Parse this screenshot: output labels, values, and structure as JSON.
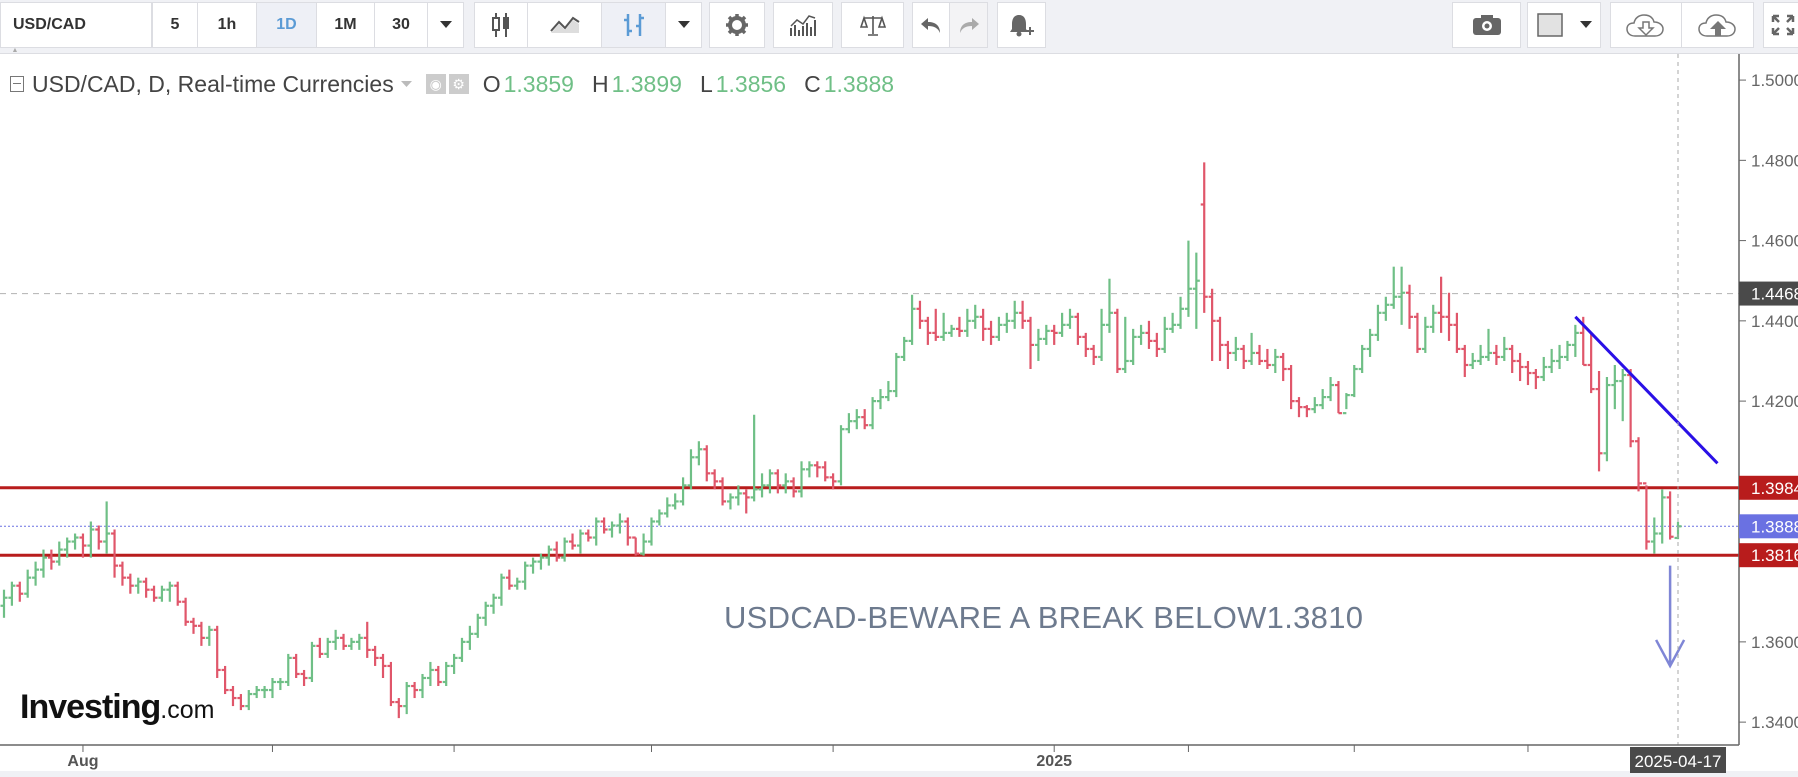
{
  "toolbar": {
    "symbol": "USD/CAD",
    "intervals": [
      "5",
      "1h",
      "1D",
      "1M",
      "30"
    ],
    "active_interval": "1D",
    "icons": [
      "candlestick-icon",
      "line-chart-icon",
      "bar-chart-icon",
      "settings-gear-icon",
      "indicators-icon",
      "compare-scale-icon",
      "undo-icon",
      "redo-icon",
      "add-alert-icon",
      "camera-icon",
      "color-swatch-icon",
      "cloud-download-icon",
      "cloud-upload-icon",
      "fullscreen-icon"
    ]
  },
  "legend": {
    "title": "USD/CAD, D, Real-time Currencies",
    "o_label": "O",
    "o": "1.3859",
    "h_label": "H",
    "h": "1.3899",
    "l_label": "L",
    "l": "1.3856",
    "c_label": "C",
    "c": "1.3888"
  },
  "annotation": "USDCAD-BEWARE A BREAK BELOW1.3810",
  "logo": {
    "brand": "Investing",
    "suffix": ".com"
  },
  "colors": {
    "up": "#6fbf86",
    "down": "#e0566a",
    "support": "#b81c1c",
    "trendline": "#2a10e6",
    "arrow": "#7f86d6",
    "last_price": "#6a71e2",
    "max_badge": "#4a4a4a"
  },
  "chart_data": {
    "type": "ohlc",
    "symbol": "USD/CAD",
    "ylim": [
      1.3343,
      1.5065
    ],
    "y_ticks": [
      "1.5000",
      "1.4800",
      "1.4600",
      "1.4400",
      "1.4200",
      "1.3600",
      "1.3400"
    ],
    "x_labels": [
      {
        "text": "Aug",
        "bar": 10
      },
      {
        "text": "2025",
        "bar": 133
      }
    ],
    "x_tick_bars": [
      10,
      34,
      57,
      82,
      105,
      133,
      150,
      171,
      193
    ],
    "last_date": "2025-04-17",
    "grid": false,
    "levels": [
      {
        "value": 1.4468,
        "label": "1.4468",
        "style": "dashed-gray"
      },
      {
        "value": 1.3984,
        "label": "1.3984",
        "style": "solid-red"
      },
      {
        "value": 1.3888,
        "label": "1.3888",
        "style": "dotted-blue"
      },
      {
        "value": 1.3816,
        "label": "1.3816",
        "style": "solid-red"
      }
    ],
    "trendline": {
      "from": [
        199,
        1.441
      ],
      "to": [
        217,
        1.4045
      ]
    },
    "arrow": {
      "bar": 211,
      "from": 1.379,
      "to": 1.354
    },
    "bars": [
      [
        1.369,
        1.373,
        1.366,
        1.371
      ],
      [
        1.371,
        1.375,
        1.369,
        1.374
      ],
      [
        1.374,
        1.375,
        1.37,
        1.372
      ],
      [
        1.372,
        1.378,
        1.371,
        1.376
      ],
      [
        1.376,
        1.38,
        1.374,
        1.378
      ],
      [
        1.378,
        1.383,
        1.376,
        1.381
      ],
      [
        1.381,
        1.383,
        1.378,
        1.38
      ],
      [
        1.38,
        1.385,
        1.379,
        1.383
      ],
      [
        1.383,
        1.386,
        1.381,
        1.385
      ],
      [
        1.385,
        1.387,
        1.383,
        1.386
      ],
      [
        1.386,
        1.387,
        1.381,
        1.384
      ],
      [
        1.384,
        1.39,
        1.381,
        1.388
      ],
      [
        1.388,
        1.389,
        1.383,
        1.385
      ],
      [
        1.385,
        1.395,
        1.382,
        1.387
      ],
      [
        1.387,
        1.388,
        1.376,
        1.379
      ],
      [
        1.379,
        1.38,
        1.374,
        1.376
      ],
      [
        1.376,
        1.377,
        1.372,
        1.374
      ],
      [
        1.374,
        1.376,
        1.372,
        1.375
      ],
      [
        1.375,
        1.376,
        1.371,
        1.373
      ],
      [
        1.373,
        1.374,
        1.37,
        1.371
      ],
      [
        1.371,
        1.374,
        1.37,
        1.373
      ],
      [
        1.373,
        1.375,
        1.37,
        1.374
      ],
      [
        1.374,
        1.375,
        1.369,
        1.37
      ],
      [
        1.37,
        1.371,
        1.364,
        1.365
      ],
      [
        1.365,
        1.366,
        1.362,
        1.364
      ],
      [
        1.364,
        1.365,
        1.359,
        1.361
      ],
      [
        1.361,
        1.364,
        1.359,
        1.363
      ],
      [
        1.363,
        1.364,
        1.351,
        1.353
      ],
      [
        1.353,
        1.354,
        1.347,
        1.348
      ],
      [
        1.348,
        1.349,
        1.344,
        1.346
      ],
      [
        1.346,
        1.347,
        1.343,
        1.344
      ],
      [
        1.344,
        1.348,
        1.343,
        1.347
      ],
      [
        1.347,
        1.349,
        1.346,
        1.348
      ],
      [
        1.348,
        1.349,
        1.346,
        1.348
      ],
      [
        1.348,
        1.351,
        1.346,
        1.35
      ],
      [
        1.35,
        1.351,
        1.348,
        1.35
      ],
      [
        1.35,
        1.357,
        1.349,
        1.356
      ],
      [
        1.356,
        1.357,
        1.351,
        1.352
      ],
      [
        1.352,
        1.353,
        1.349,
        1.351
      ],
      [
        1.351,
        1.36,
        1.35,
        1.359
      ],
      [
        1.359,
        1.361,
        1.356,
        1.357
      ],
      [
        1.357,
        1.361,
        1.356,
        1.36
      ],
      [
        1.36,
        1.363,
        1.358,
        1.361
      ],
      [
        1.361,
        1.362,
        1.358,
        1.359
      ],
      [
        1.359,
        1.361,
        1.358,
        1.36
      ],
      [
        1.36,
        1.362,
        1.358,
        1.361
      ],
      [
        1.361,
        1.365,
        1.356,
        1.358
      ],
      [
        1.358,
        1.359,
        1.354,
        1.356
      ],
      [
        1.356,
        1.357,
        1.351,
        1.354
      ],
      [
        1.354,
        1.355,
        1.344,
        1.345
      ],
      [
        1.345,
        1.346,
        1.341,
        1.344
      ],
      [
        1.344,
        1.35,
        1.342,
        1.349
      ],
      [
        1.349,
        1.35,
        1.346,
        1.348
      ],
      [
        1.348,
        1.352,
        1.346,
        1.351
      ],
      [
        1.351,
        1.355,
        1.349,
        1.353
      ],
      [
        1.353,
        1.354,
        1.349,
        1.35
      ],
      [
        1.35,
        1.355,
        1.349,
        1.354
      ],
      [
        1.354,
        1.357,
        1.352,
        1.356
      ],
      [
        1.356,
        1.361,
        1.355,
        1.36
      ],
      [
        1.36,
        1.364,
        1.358,
        1.362
      ],
      [
        1.362,
        1.367,
        1.361,
        1.366
      ],
      [
        1.366,
        1.37,
        1.364,
        1.369
      ],
      [
        1.369,
        1.372,
        1.367,
        1.371
      ],
      [
        1.371,
        1.377,
        1.369,
        1.376
      ],
      [
        1.376,
        1.378,
        1.373,
        1.374
      ],
      [
        1.374,
        1.376,
        1.373,
        1.375
      ],
      [
        1.375,
        1.38,
        1.373,
        1.379
      ],
      [
        1.379,
        1.381,
        1.377,
        1.38
      ],
      [
        1.38,
        1.382,
        1.378,
        1.381
      ],
      [
        1.381,
        1.384,
        1.379,
        1.383
      ],
      [
        1.383,
        1.385,
        1.38,
        1.381
      ],
      [
        1.381,
        1.386,
        1.38,
        1.385
      ],
      [
        1.385,
        1.387,
        1.383,
        1.384
      ],
      [
        1.384,
        1.388,
        1.382,
        1.387
      ],
      [
        1.387,
        1.388,
        1.385,
        1.386
      ],
      [
        1.386,
        1.391,
        1.384,
        1.39
      ],
      [
        1.39,
        1.391,
        1.387,
        1.388
      ],
      [
        1.388,
        1.39,
        1.386,
        1.389
      ],
      [
        1.389,
        1.392,
        1.387,
        1.39
      ],
      [
        1.39,
        1.391,
        1.384,
        1.386
      ],
      [
        1.386,
        1.386,
        1.3815,
        1.382
      ],
      [
        1.382,
        1.387,
        1.3815,
        1.385
      ],
      [
        1.385,
        1.391,
        1.384,
        1.39
      ],
      [
        1.39,
        1.393,
        1.389,
        1.392
      ],
      [
        1.392,
        1.396,
        1.391,
        1.394
      ],
      [
        1.394,
        1.397,
        1.393,
        1.395
      ],
      [
        1.395,
        1.401,
        1.394,
        1.399
      ],
      [
        1.399,
        1.408,
        1.398,
        1.406
      ],
      [
        1.406,
        1.41,
        1.404,
        1.408
      ],
      [
        1.408,
        1.409,
        1.4,
        1.402
      ],
      [
        1.402,
        1.403,
        1.398,
        1.4
      ],
      [
        1.4,
        1.401,
        1.394,
        1.395
      ],
      [
        1.395,
        1.397,
        1.393,
        1.396
      ],
      [
        1.396,
        1.399,
        1.394,
        1.397
      ],
      [
        1.397,
        1.398,
        1.392,
        1.396
      ],
      [
        1.396,
        1.4166,
        1.395,
        1.398
      ],
      [
        1.398,
        1.402,
        1.396,
        1.399
      ],
      [
        1.399,
        1.403,
        1.397,
        1.402
      ],
      [
        1.402,
        1.403,
        1.397,
        1.399
      ],
      [
        1.399,
        1.402,
        1.397,
        1.4
      ],
      [
        1.4,
        1.401,
        1.396,
        1.3975
      ],
      [
        1.3975,
        1.405,
        1.396,
        1.403
      ],
      [
        1.403,
        1.405,
        1.401,
        1.404
      ],
      [
        1.404,
        1.405,
        1.401,
        1.4035
      ],
      [
        1.4035,
        1.405,
        1.4,
        1.401
      ],
      [
        1.401,
        1.402,
        1.398,
        1.4
      ],
      [
        1.4,
        1.414,
        1.399,
        1.413
      ],
      [
        1.413,
        1.417,
        1.412,
        1.415
      ],
      [
        1.415,
        1.418,
        1.413,
        1.416
      ],
      [
        1.416,
        1.418,
        1.413,
        1.414
      ],
      [
        1.414,
        1.421,
        1.413,
        1.42
      ],
      [
        1.42,
        1.423,
        1.418,
        1.421
      ],
      [
        1.421,
        1.425,
        1.42,
        1.4225
      ],
      [
        1.4225,
        1.432,
        1.421,
        1.431
      ],
      [
        1.431,
        1.436,
        1.43,
        1.435
      ],
      [
        1.435,
        1.4465,
        1.434,
        1.443
      ],
      [
        1.443,
        1.445,
        1.438,
        1.44
      ],
      [
        1.44,
        1.441,
        1.434,
        1.437
      ],
      [
        1.437,
        1.443,
        1.435,
        1.436
      ],
      [
        1.436,
        1.442,
        1.435,
        1.437
      ],
      [
        1.437,
        1.439,
        1.436,
        1.438
      ],
      [
        1.438,
        1.441,
        1.436,
        1.4375
      ],
      [
        1.4375,
        1.443,
        1.436,
        1.44
      ],
      [
        1.44,
        1.444,
        1.438,
        1.441
      ],
      [
        1.441,
        1.443,
        1.435,
        1.438
      ],
      [
        1.438,
        1.44,
        1.434,
        1.436
      ],
      [
        1.436,
        1.441,
        1.435,
        1.439
      ],
      [
        1.439,
        1.442,
        1.437,
        1.44
      ],
      [
        1.44,
        1.445,
        1.438,
        1.442
      ],
      [
        1.442,
        1.445,
        1.438,
        1.44
      ],
      [
        1.44,
        1.441,
        1.428,
        1.434
      ],
      [
        1.434,
        1.438,
        1.43,
        1.4355
      ],
      [
        1.4355,
        1.439,
        1.434,
        1.4375
      ],
      [
        1.4375,
        1.439,
        1.434,
        1.437
      ],
      [
        1.437,
        1.442,
        1.436,
        1.439
      ],
      [
        1.439,
        1.443,
        1.438,
        1.441
      ],
      [
        1.441,
        1.442,
        1.434,
        1.436
      ],
      [
        1.436,
        1.437,
        1.431,
        1.433
      ],
      [
        1.433,
        1.434,
        1.429,
        1.431
      ],
      [
        1.431,
        1.443,
        1.43,
        1.439
      ],
      [
        1.439,
        1.4505,
        1.437,
        1.442
      ],
      [
        1.442,
        1.443,
        1.427,
        1.428
      ],
      [
        1.428,
        1.441,
        1.427,
        1.43
      ],
      [
        1.43,
        1.438,
        1.429,
        1.436
      ],
      [
        1.436,
        1.439,
        1.434,
        1.437
      ],
      [
        1.437,
        1.44,
        1.433,
        1.435
      ],
      [
        1.435,
        1.437,
        1.431,
        1.433
      ],
      [
        1.433,
        1.441,
        1.432,
        1.438
      ],
      [
        1.438,
        1.442,
        1.437,
        1.439
      ],
      [
        1.439,
        1.446,
        1.438,
        1.443
      ],
      [
        1.443,
        1.46,
        1.441,
        1.448
      ],
      [
        1.448,
        1.457,
        1.438,
        1.45
      ],
      [
        1.469,
        1.4795,
        1.442,
        1.446
      ],
      [
        1.446,
        1.448,
        1.43,
        1.44
      ],
      [
        1.44,
        1.441,
        1.43,
        1.434
      ],
      [
        1.434,
        1.435,
        1.428,
        1.432
      ],
      [
        1.432,
        1.436,
        1.43,
        1.433
      ],
      [
        1.433,
        1.434,
        1.428,
        1.43
      ],
      [
        1.43,
        1.437,
        1.429,
        1.432
      ],
      [
        1.432,
        1.434,
        1.429,
        1.43
      ],
      [
        1.43,
        1.433,
        1.428,
        1.429
      ],
      [
        1.429,
        1.433,
        1.427,
        1.431
      ],
      [
        1.431,
        1.432,
        1.425,
        1.428
      ],
      [
        1.428,
        1.429,
        1.418,
        1.42
      ],
      [
        1.42,
        1.421,
        1.416,
        1.4185
      ],
      [
        1.4185,
        1.419,
        1.416,
        1.418
      ],
      [
        1.418,
        1.421,
        1.417,
        1.419
      ],
      [
        1.419,
        1.423,
        1.418,
        1.421
      ],
      [
        1.421,
        1.426,
        1.42,
        1.424
      ],
      [
        1.424,
        1.425,
        1.417,
        1.417
      ],
      [
        1.417,
        1.422,
        1.418,
        1.4215
      ],
      [
        1.4215,
        1.429,
        1.421,
        1.428
      ],
      [
        1.428,
        1.434,
        1.427,
        1.433
      ],
      [
        1.433,
        1.438,
        1.431,
        1.4365
      ],
      [
        1.4365,
        1.444,
        1.435,
        1.442
      ],
      [
        1.442,
        1.446,
        1.44,
        1.444
      ],
      [
        1.444,
        1.4535,
        1.443,
        1.446
      ],
      [
        1.446,
        1.4535,
        1.439,
        1.447
      ],
      [
        1.447,
        1.449,
        1.438,
        1.441
      ],
      [
        1.441,
        1.442,
        1.432,
        1.433
      ],
      [
        1.433,
        1.441,
        1.432,
        1.4385
      ],
      [
        1.4385,
        1.444,
        1.437,
        1.442
      ],
      [
        1.442,
        1.451,
        1.437,
        1.441
      ],
      [
        1.441,
        1.447,
        1.435,
        1.439
      ],
      [
        1.439,
        1.442,
        1.432,
        1.433
      ],
      [
        1.433,
        1.434,
        1.426,
        1.429
      ],
      [
        1.429,
        1.432,
        1.428,
        1.43
      ],
      [
        1.43,
        1.434,
        1.429,
        1.431
      ],
      [
        1.431,
        1.438,
        1.43,
        1.432
      ],
      [
        1.432,
        1.434,
        1.429,
        1.431
      ],
      [
        1.431,
        1.436,
        1.43,
        1.433
      ],
      [
        1.433,
        1.434,
        1.427,
        1.43
      ],
      [
        1.43,
        1.432,
        1.425,
        1.4285
      ],
      [
        1.4285,
        1.43,
        1.424,
        1.427
      ],
      [
        1.427,
        1.428,
        1.423,
        1.426
      ],
      [
        1.426,
        1.431,
        1.425,
        1.4285
      ],
      [
        1.4285,
        1.433,
        1.427,
        1.43
      ],
      [
        1.43,
        1.434,
        1.428,
        1.431
      ],
      [
        1.431,
        1.435,
        1.43,
        1.434
      ],
      [
        1.434,
        1.439,
        1.431,
        1.437
      ],
      [
        1.437,
        1.441,
        1.429,
        1.429
      ],
      [
        1.429,
        1.437,
        1.422,
        1.423
      ],
      [
        1.423,
        1.4275,
        1.4025,
        1.407
      ],
      [
        1.407,
        1.426,
        1.405,
        1.424
      ],
      [
        1.424,
        1.429,
        1.418,
        1.425
      ],
      [
        1.425,
        1.428,
        1.415,
        1.4265
      ],
      [
        1.4265,
        1.428,
        1.4085,
        1.41
      ],
      [
        1.41,
        1.411,
        1.3975,
        1.3995
      ],
      [
        1.3995,
        1.399,
        1.383,
        1.385
      ],
      [
        1.385,
        1.391,
        1.382,
        1.387
      ],
      [
        1.387,
        1.398,
        1.3845,
        1.396
      ],
      [
        1.396,
        1.3975,
        1.3855,
        1.3862
      ],
      [
        1.3859,
        1.3899,
        1.3856,
        1.3888
      ]
    ]
  }
}
